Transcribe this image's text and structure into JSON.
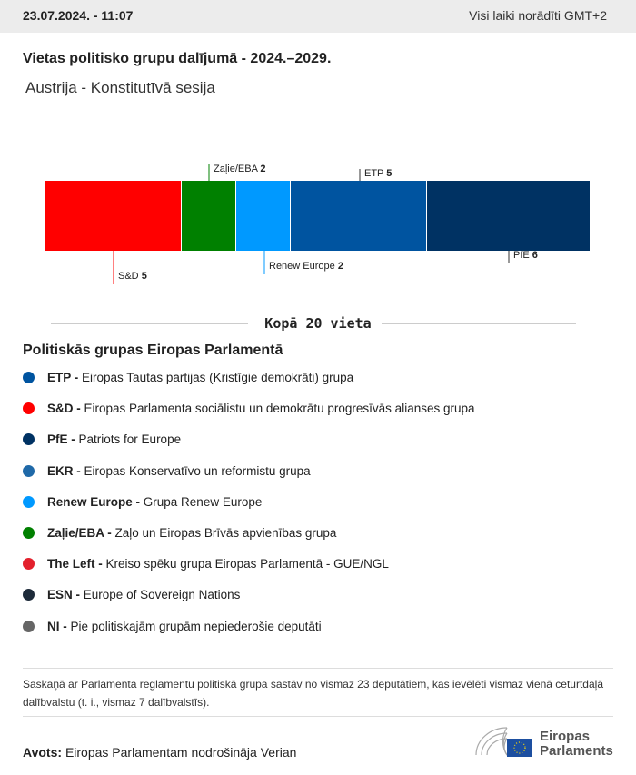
{
  "header": {
    "datetime": "23.07.2024. - 11:07",
    "timezone_note": "Visi laiki norādīti GMT+2"
  },
  "title": "Vietas politisko grupu dalījumā - 2024.–2029.",
  "subtitle": "Austrija - Konstitutīvā sesija",
  "chart_data": {
    "type": "bar",
    "orientation": "horizontal-stacked",
    "categories": [
      "S&D",
      "Zaļie/EBA",
      "Renew Europe",
      "ETP",
      "PfE"
    ],
    "values": [
      5,
      2,
      2,
      5,
      6
    ],
    "colors": [
      "#ff0000",
      "#008000",
      "#0099ff",
      "#0054a0",
      "#003263"
    ],
    "label_positions": [
      "below",
      "above",
      "below",
      "above",
      "below"
    ],
    "total": 20
  },
  "total_label": "Kopā 20 vieta",
  "legend": {
    "title": "Politiskās grupas Eiropas Parlamentā",
    "items": [
      {
        "abbr": "ETP -",
        "name": "Eiropas Tautas partijas (Kristīgie demokrāti) grupa",
        "color": "#0054a0"
      },
      {
        "abbr": "S&D -",
        "name": "Eiropas Parlamenta sociālistu un demokrātu progresīvās alianses grupa",
        "color": "#ff0000"
      },
      {
        "abbr": "PfE -",
        "name": "Patriots for Europe",
        "color": "#003263"
      },
      {
        "abbr": "EKR -",
        "name": "Eiropas Konservatīvo un reformistu grupa",
        "color": "#1f69a8"
      },
      {
        "abbr": "Renew Europe -",
        "name": "Grupa Renew Europe",
        "color": "#0099ff"
      },
      {
        "abbr": "Zaļie/EBA -",
        "name": "Zaļo un Eiropas Brīvās apvienības grupa",
        "color": "#008000"
      },
      {
        "abbr": "The Left -",
        "name": "Kreiso spēku grupa Eiropas Parlamentā - GUE/NGL",
        "color": "#e3212d"
      },
      {
        "abbr": "ESN -",
        "name": "Europe of Sovereign Nations",
        "color": "#1e2b3a"
      },
      {
        "abbr": "NI -",
        "name": "Pie politiskajām grupām nepiederošie deputāti",
        "color": "#666666"
      }
    ]
  },
  "note": "Saskaņā ar Parlamenta reglamentu politiskā grupa sastāv no vismaz 23 deputātiem, kas ievēlēti vismaz vienā ceturtdaļā dalībvalstu (t. i., vismaz 7 dalībvalstīs).",
  "source": {
    "label": "Avots:",
    "text": "Eiropas Parlamentam nodrošināja Verian"
  },
  "logo": {
    "line1": "Eiropas",
    "line2": "Parlaments"
  }
}
